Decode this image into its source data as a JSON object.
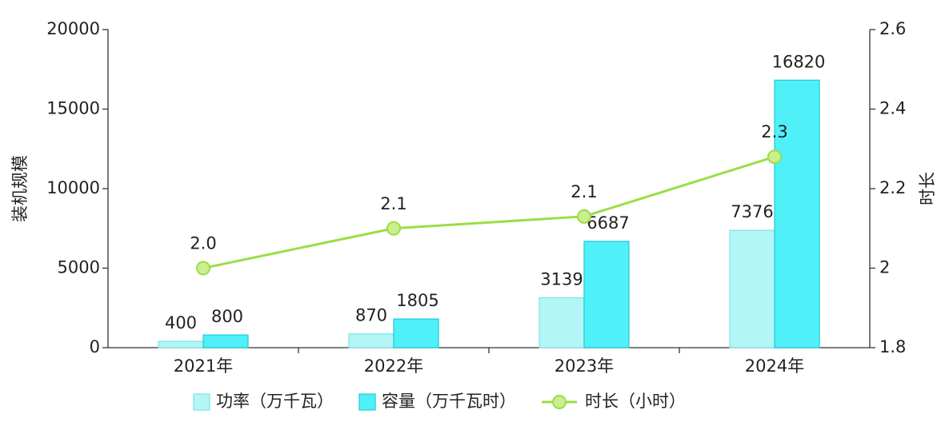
{
  "chart_data": {
    "type": "bar",
    "categories": [
      "2021年",
      "2022年",
      "2023年",
      "2024年"
    ],
    "series": [
      {
        "name": "功率（万千瓦）",
        "type": "bar",
        "color": "#b3f6f6",
        "values": [
          400,
          870,
          3139,
          7376
        ]
      },
      {
        "name": "容量（万千瓦时）",
        "type": "bar",
        "color": "#4ff0f8",
        "values": [
          800,
          1805,
          6687,
          16820
        ]
      },
      {
        "name": "时长（小时）",
        "type": "line",
        "axis": "y2",
        "color": "#9ade44",
        "values": [
          2.0,
          2.1,
          2.13,
          2.28
        ],
        "value_labels": [
          "2.0",
          "2.1",
          "2.1",
          "2.3"
        ]
      }
    ],
    "ylabel": "装机规模",
    "y2label": "时长",
    "ylim": [
      0,
      20000
    ],
    "yticks": [
      0,
      5000,
      10000,
      15000,
      20000
    ],
    "y2lim": [
      1.8,
      2.6
    ],
    "y2ticks": [
      1.8,
      2,
      2.2,
      2.4,
      2.6
    ],
    "legend": "bottom"
  }
}
